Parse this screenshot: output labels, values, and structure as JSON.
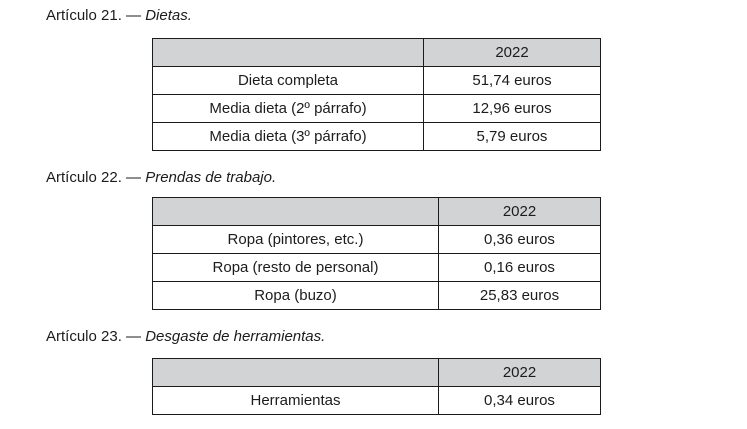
{
  "colors": {
    "header_bg": "#d1d3d4",
    "border": "#1b1b1b",
    "text": "#1c1c1e",
    "page_bg": "#ffffff"
  },
  "sections": [
    {
      "heading": {
        "prefix": "Artículo 21. — ",
        "title": "Dietas."
      },
      "table": {
        "year_header": "2022",
        "rows": [
          {
            "label": "Dieta completa",
            "value": "51,74 euros"
          },
          {
            "label": "Media dieta (2º párrafo)",
            "value": "12,96 euros"
          },
          {
            "label": "Media dieta (3º párrafo)",
            "value": "5,79 euros"
          }
        ]
      }
    },
    {
      "heading": {
        "prefix": "Artículo 22. — ",
        "title": "Prendas de trabajo."
      },
      "table": {
        "year_header": "2022",
        "rows": [
          {
            "label": "Ropa (pintores, etc.)",
            "value": "0,36 euros"
          },
          {
            "label": "Ropa (resto de personal)",
            "value": "0,16 euros"
          },
          {
            "label": "Ropa (buzo)",
            "value": "25,83 euros"
          }
        ]
      }
    },
    {
      "heading": {
        "prefix": "Artículo 23. — ",
        "title": "Desgaste de herramientas."
      },
      "table": {
        "year_header": "2022",
        "rows": [
          {
            "label": "Herramientas",
            "value": "0,34 euros"
          }
        ]
      }
    }
  ]
}
